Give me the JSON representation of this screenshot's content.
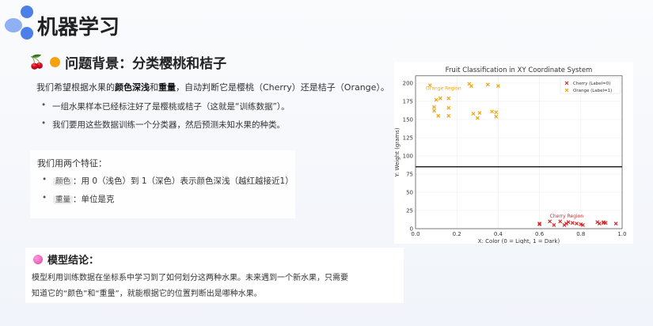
{
  "header": {
    "title": "机器学习",
    "logo_icon": "blue-petal-logo"
  },
  "background": {
    "icons": [
      "cherry-icon",
      "orange-icon"
    ],
    "title": "问题背景：分类樱桃和桔子",
    "intro": {
      "p1": "我们希望根据水果的",
      "b1": "颜色深浅",
      "p2": "和",
      "b2": "重量",
      "p3": "，自动判断它是樱桃（Cherry）还是桔子（Orange）。"
    },
    "bullets": [
      "一组水果样本已经标注好了是樱桃或桔子（这就是“训练数据”）。",
      "我们要用这些数据训练一个分类器，然后预测未知水果的种类。"
    ]
  },
  "features": {
    "intro": "我们用两个特征：",
    "items": [
      {
        "tag": "颜色",
        "text": "：用 0（浅色）到 1（深色）表示颜色深浅（越红越接近1）"
      },
      {
        "tag": "重量",
        "text": "：单位是克"
      }
    ]
  },
  "conclusion": {
    "icon": "brain-icon",
    "title": "模型结论：",
    "text": "模型利用训练数据在坐标系中学习到了如何划分这两种水果。未来遇到一个新水果，只需要知道它的“颜色”和“重量”，就能根据它的位置判断出是哪种水果。"
  },
  "chart_data": {
    "type": "scatter",
    "title": "Fruit Classification in XY Coordinate System",
    "xlabel": "X: Color (0 = Light, 1 = Dark)",
    "ylabel": "Y: Weight (grams)",
    "xlim": [
      0,
      1
    ],
    "ylim": [
      0,
      210
    ],
    "xticks": [
      0,
      0.2,
      0.4,
      0.6,
      0.8,
      1.0
    ],
    "xtick_labels": [
      "0.0",
      "0.2",
      "0.4",
      "0.6",
      "0.8",
      "1.0"
    ],
    "yticks": [
      0,
      25,
      50,
      75,
      100,
      125,
      150,
      175,
      200
    ],
    "ytick_labels": [
      "0",
      "25",
      "50",
      "75",
      "100",
      "125",
      "150",
      "175",
      "200"
    ],
    "grid": true,
    "legend": "top-right",
    "decision_boundary_y": 85,
    "series": [
      {
        "name": "Cherry (Label=0)",
        "color": "#d62728",
        "marker": "x",
        "points": [
          [
            0.6,
            7
          ],
          [
            0.6,
            6
          ],
          [
            0.65,
            10
          ],
          [
            0.67,
            5
          ],
          [
            0.7,
            10
          ],
          [
            0.72,
            5
          ],
          [
            0.73,
            7
          ],
          [
            0.74,
            9
          ],
          [
            0.76,
            8
          ],
          [
            0.78,
            7
          ],
          [
            0.8,
            6
          ],
          [
            0.81,
            5
          ],
          [
            0.88,
            9
          ],
          [
            0.89,
            7
          ],
          [
            0.91,
            8
          ],
          [
            0.92,
            8
          ],
          [
            0.91,
            9
          ],
          [
            0.97,
            7
          ]
        ]
      },
      {
        "name": "Orange (Label=1)",
        "color": "#f0a30a",
        "marker": "x",
        "points": [
          [
            0.07,
            197
          ],
          [
            0.26,
            199
          ],
          [
            0.27,
            196
          ],
          [
            0.35,
            198
          ],
          [
            0.4,
            196
          ],
          [
            0.1,
            177
          ],
          [
            0.12,
            179
          ],
          [
            0.16,
            179
          ],
          [
            0.09,
            167
          ],
          [
            0.16,
            166
          ],
          [
            0.09,
            162
          ],
          [
            0.11,
            155
          ],
          [
            0.16,
            155
          ],
          [
            0.28,
            158
          ],
          [
            0.31,
            159
          ],
          [
            0.37,
            161
          ],
          [
            0.39,
            160
          ],
          [
            0.3,
            152
          ],
          [
            0.39,
            154
          ]
        ]
      }
    ],
    "annotations": [
      {
        "text": "Orange Region",
        "x": 0.05,
        "y": 191,
        "color": "#f0a30a"
      },
      {
        "text": "Cherry Region",
        "x": 0.65,
        "y": 15,
        "color": "#d62728"
      }
    ]
  }
}
